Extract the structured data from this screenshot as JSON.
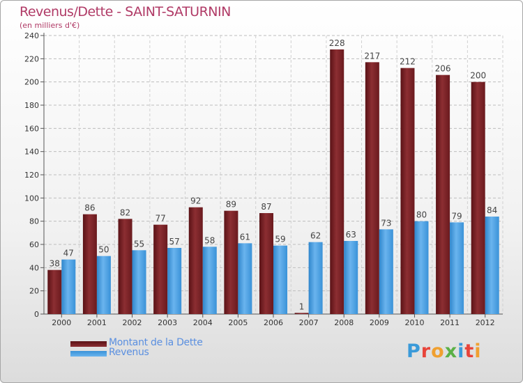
{
  "title": "Revenus/Dette - SAINT-SATURNIN",
  "subtitle": "(en milliers d'€)",
  "legend": {
    "debt_label": "Montant de la Dette",
    "revenue_label": "Revenus"
  },
  "logo": {
    "text": "Proxiti",
    "letter_colors": [
      "#3a9ad9",
      "#e8443a",
      "#f0a030",
      "#5bb046",
      "#3a9ad9",
      "#e8443a",
      "#f0a030"
    ]
  },
  "colors": {
    "debt": "#7a2226",
    "debt_light": "#9c3a3e",
    "revenue": "#4a9ee0",
    "revenue_light": "#6fb6ef",
    "title": "#b03a66",
    "legend_text": "#5a8fe0"
  },
  "chart_data": {
    "type": "bar",
    "categories": [
      "2000",
      "2001",
      "2002",
      "2003",
      "2004",
      "2005",
      "2006",
      "2007",
      "2008",
      "2009",
      "2010",
      "2011",
      "2012"
    ],
    "series": [
      {
        "name": "Montant de la Dette",
        "values": [
          38,
          86,
          82,
          77,
          92,
          89,
          87,
          1,
          228,
          217,
          212,
          206,
          200
        ]
      },
      {
        "name": "Revenus",
        "values": [
          47,
          50,
          55,
          57,
          58,
          61,
          59,
          62,
          63,
          73,
          80,
          79,
          84
        ]
      }
    ],
    "title": "Revenus/Dette - SAINT-SATURNIN",
    "ylabel": "(en milliers d'€)",
    "xlabel": "",
    "ylim": [
      0,
      240
    ],
    "yticks": [
      0,
      20,
      40,
      60,
      80,
      100,
      120,
      140,
      160,
      180,
      200,
      220,
      240
    ],
    "grid": true,
    "legend_position": "bottom-left"
  }
}
